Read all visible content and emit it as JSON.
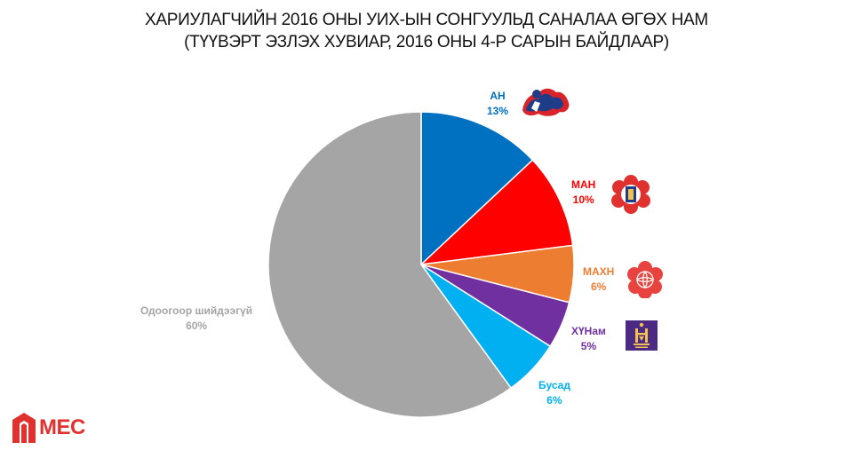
{
  "title_line1": "ХАРИУЛАГЧИЙН 2016 ОНЫ УИХ-ЫН СОНГУУЛЬД САНАЛАА ӨГӨХ НАМ",
  "title_line2": "(ТҮҮВЭРТ ЭЗЛЭХ ХУВИАР, 2016 ОНЫ 4-Р САРЫН БАЙДЛААР)",
  "brand": "MEC",
  "colors": {
    "AH": "#0070c0",
    "MAH": "#ff0000",
    "MAXH": "#ed7d31",
    "XYHam": "#7030a0",
    "Busad": "#00b0f0",
    "Odoo": "#a5a5a5"
  },
  "icons": [
    "ah-party-logo-icon",
    "man-party-logo-icon",
    "mahn-party-logo-icon",
    "khun-party-logo-icon",
    "mec-logo-icon"
  ],
  "chart_data": {
    "type": "pie",
    "unit": "%",
    "slices": [
      {
        "label": "АН",
        "value": 13,
        "value_label": "13%",
        "color": "#0070c0"
      },
      {
        "label": "МАН",
        "value": 10,
        "value_label": "10%",
        "color": "#ff0000"
      },
      {
        "label": "МАХН",
        "value": 6,
        "value_label": "6%",
        "color": "#ed7d31"
      },
      {
        "label": "ХҮНам",
        "value": 5,
        "value_label": "5%",
        "color": "#7030a0"
      },
      {
        "label": "Бусад",
        "value": 6,
        "value_label": "6%",
        "color": "#00b0f0"
      },
      {
        "label": "Одоогоор шийдээгүй",
        "value": 60,
        "value_label": "60%",
        "color": "#a5a5a5"
      }
    ]
  }
}
